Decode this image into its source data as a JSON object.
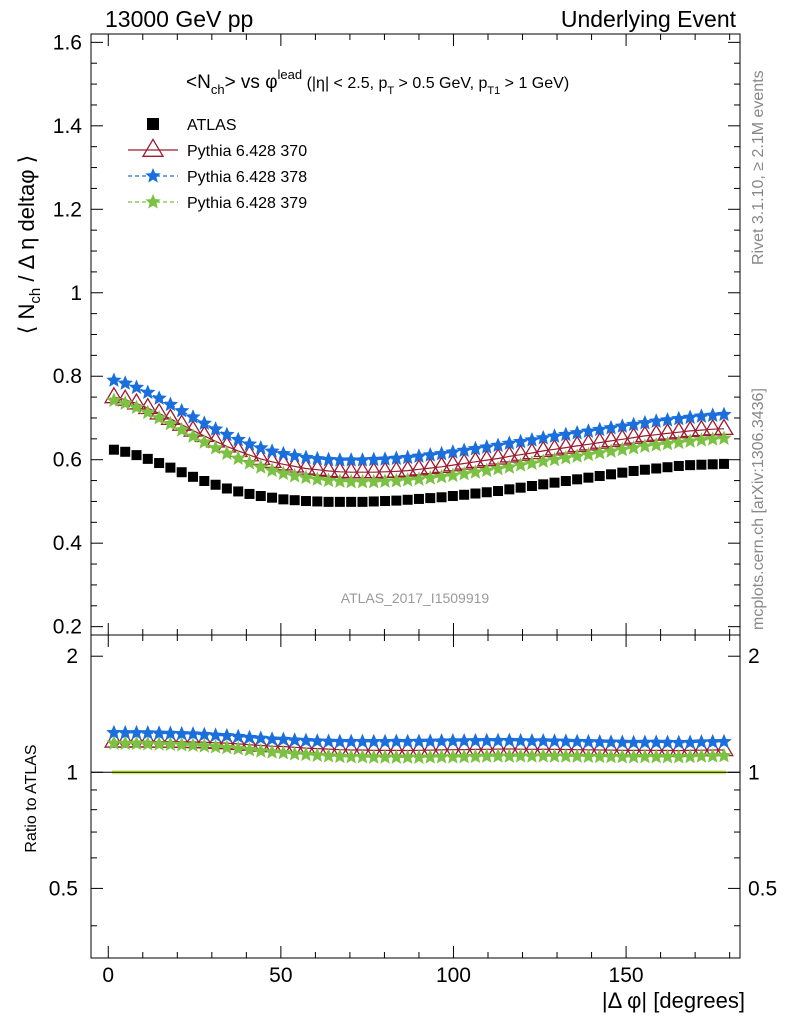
{
  "header": {
    "left": "13000 GeV pp",
    "right": "Underlying Event"
  },
  "side_labels": {
    "top": "Rivet 3.1.10, ≥ 2.1M events",
    "bottom": "mcplots.cern.ch [arXiv:1306.3436]"
  },
  "watermark": "ATLAS_2017_I1509919",
  "chart_data": {
    "type": "scatter",
    "title_parts": {
      "pre": "<N",
      "pre_sub": "ch",
      "mid": "> vs φ",
      "mid_sup": "lead",
      "cut1": " (|η| < 2.5, p",
      "cut1_sub": "T",
      "cut2": " > 0.5 GeV, p",
      "cut2_sub": "T1",
      "cut3": " > 1 GeV)"
    },
    "ylabel_parts": {
      "a": "⟨ N",
      "a_sub": "ch",
      "b": "/ Δ η deltaφ ⟩"
    },
    "xlabel": "|Δ φ| [degrees]",
    "ratio_ylabel": "Ratio to ATLAS",
    "xlim": [
      -5,
      183
    ],
    "ylim": [
      0.18,
      1.62
    ],
    "ratio_ylim": [
      0.33,
      2.27
    ],
    "ratio_log": true,
    "x_ticks": [
      0,
      50,
      100,
      150
    ],
    "y_ticks": [
      0.2,
      0.4,
      0.6,
      0.8,
      1.0,
      1.2,
      1.4,
      1.6
    ],
    "y_tick_labels": [
      "0.2",
      "0.4",
      "0.6",
      "0.8",
      "1",
      "1.2",
      "1.4",
      "1.6"
    ],
    "ratio_ticks": [
      0.5,
      1,
      2
    ],
    "ratio_tick_labels": [
      "0.5",
      "1",
      "2"
    ],
    "x": [
      1.64,
      4.91,
      8.18,
      11.45,
      14.73,
      18.0,
      21.27,
      24.55,
      27.82,
      31.09,
      34.36,
      37.64,
      40.91,
      44.18,
      47.45,
      50.73,
      54.0,
      57.27,
      60.55,
      63.82,
      67.09,
      70.36,
      73.64,
      76.91,
      80.18,
      83.45,
      86.73,
      90.0,
      93.27,
      96.55,
      99.82,
      103.09,
      106.36,
      109.64,
      112.91,
      116.18,
      119.45,
      122.73,
      126.0,
      129.27,
      132.55,
      135.82,
      139.09,
      142.36,
      145.64,
      148.91,
      152.18,
      155.45,
      158.73,
      162.0,
      165.27,
      168.55,
      171.82,
      175.09,
      178.36
    ],
    "legend_position": "top-left",
    "series": [
      {
        "name": "ATLAS",
        "color": "#000000",
        "marker": "square",
        "line": "none",
        "values": [
          0.624,
          0.619,
          0.611,
          0.602,
          0.592,
          0.581,
          0.57,
          0.559,
          0.549,
          0.54,
          0.531,
          0.524,
          0.518,
          0.513,
          0.509,
          0.505,
          0.503,
          0.501,
          0.5,
          0.499,
          0.499,
          0.499,
          0.499,
          0.5,
          0.501,
          0.502,
          0.504,
          0.506,
          0.508,
          0.51,
          0.513,
          0.516,
          0.519,
          0.522,
          0.525,
          0.529,
          0.533,
          0.537,
          0.541,
          0.545,
          0.549,
          0.553,
          0.557,
          0.561,
          0.565,
          0.569,
          0.573,
          0.576,
          0.579,
          0.582,
          0.585,
          0.587,
          0.588,
          0.589,
          0.59
        ]
      },
      {
        "name": "Pythia 6.428 370",
        "color": "#9b1b30",
        "marker": "triangle-open",
        "line": "solid",
        "values": [
          0.75,
          0.744,
          0.735,
          0.724,
          0.711,
          0.698,
          0.684,
          0.67,
          0.657,
          0.644,
          0.632,
          0.621,
          0.611,
          0.602,
          0.595,
          0.589,
          0.584,
          0.579,
          0.576,
          0.573,
          0.571,
          0.57,
          0.57,
          0.57,
          0.571,
          0.572,
          0.574,
          0.577,
          0.58,
          0.583,
          0.587,
          0.591,
          0.595,
          0.599,
          0.603,
          0.608,
          0.612,
          0.616,
          0.621,
          0.625,
          0.629,
          0.633,
          0.637,
          0.641,
          0.645,
          0.649,
          0.653,
          0.657,
          0.66,
          0.663,
          0.666,
          0.669,
          0.671,
          0.673,
          0.674
        ]
      },
      {
        "name": "Pythia 6.428 378",
        "color": "#1a6fdc",
        "marker": "star",
        "line": "dashed",
        "values": [
          0.79,
          0.783,
          0.773,
          0.761,
          0.747,
          0.732,
          0.717,
          0.702,
          0.687,
          0.673,
          0.66,
          0.648,
          0.637,
          0.628,
          0.62,
          0.614,
          0.609,
          0.605,
          0.602,
          0.6,
          0.599,
          0.599,
          0.599,
          0.6,
          0.601,
          0.603,
          0.605,
          0.608,
          0.611,
          0.614,
          0.618,
          0.622,
          0.626,
          0.63,
          0.634,
          0.639,
          0.643,
          0.647,
          0.652,
          0.656,
          0.66,
          0.664,
          0.668,
          0.672,
          0.676,
          0.68,
          0.684,
          0.688,
          0.692,
          0.695,
          0.698,
          0.701,
          0.704,
          0.706,
          0.708
        ]
      },
      {
        "name": "Pythia 6.428 379",
        "color": "#7bc142",
        "marker": "star",
        "line": "dashed",
        "values": [
          0.742,
          0.735,
          0.725,
          0.713,
          0.7,
          0.686,
          0.671,
          0.656,
          0.642,
          0.628,
          0.615,
          0.603,
          0.592,
          0.582,
          0.574,
          0.567,
          0.561,
          0.557,
          0.553,
          0.55,
          0.548,
          0.547,
          0.547,
          0.547,
          0.548,
          0.549,
          0.551,
          0.553,
          0.556,
          0.559,
          0.562,
          0.566,
          0.57,
          0.574,
          0.578,
          0.582,
          0.587,
          0.591,
          0.596,
          0.6,
          0.604,
          0.608,
          0.612,
          0.616,
          0.62,
          0.624,
          0.628,
          0.632,
          0.635,
          0.638,
          0.641,
          0.644,
          0.647,
          0.649,
          0.651
        ]
      }
    ]
  }
}
